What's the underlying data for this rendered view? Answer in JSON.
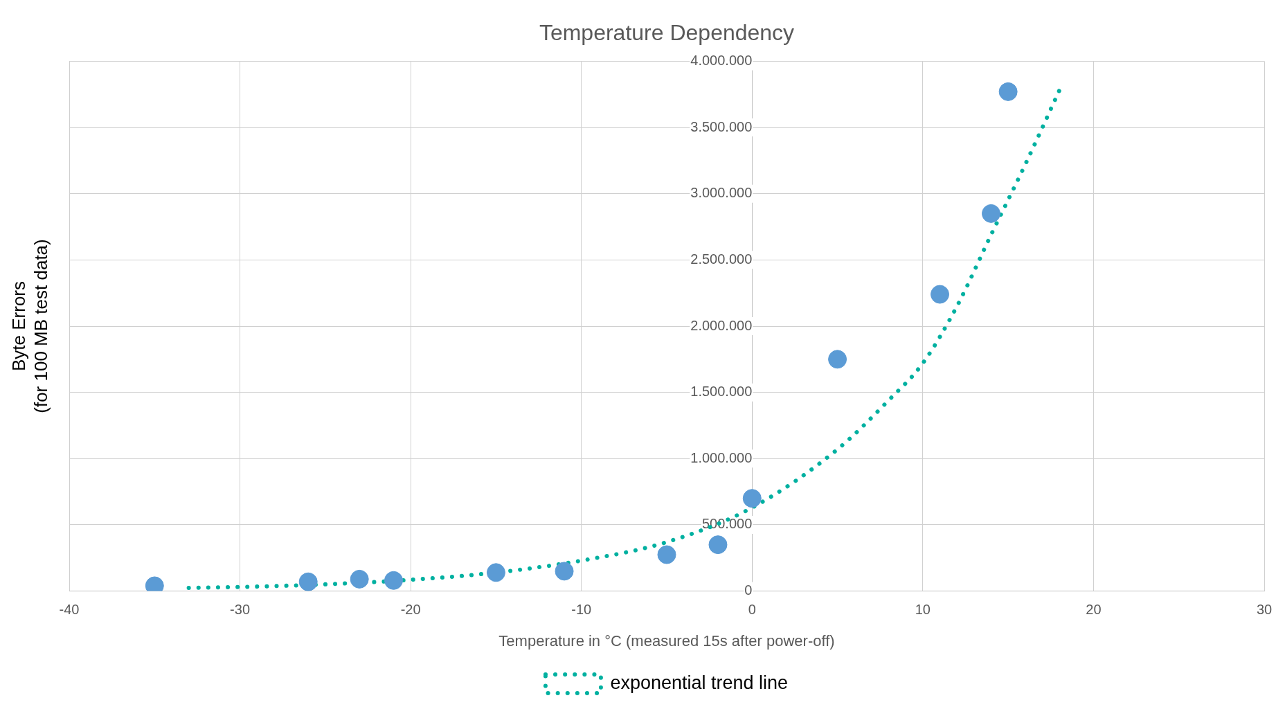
{
  "chart_data": {
    "type": "scatter",
    "title": "Temperature Dependency",
    "xlabel": "Temperature in °C (measured 15s after power-off)",
    "ylabel": "Byte Errors\n(for 100 MB test data)",
    "xlim": [
      -40,
      30
    ],
    "xticks": [
      -40,
      -30,
      -20,
      -10,
      0,
      10,
      20,
      30
    ],
    "ylim": [
      0,
      4000000
    ],
    "yticks": [
      0,
      {
        "value": 500000,
        "label": "500.000"
      },
      {
        "value": 1000000,
        "label": "1.000.000"
      },
      {
        "value": 1500000,
        "label": "1.500.000"
      },
      {
        "value": 2000000,
        "label": "2.000.000"
      },
      {
        "value": 2500000,
        "label": "2.500.000"
      },
      {
        "value": 3000000,
        "label": "3.000.000"
      },
      {
        "value": 3500000,
        "label": "3.500.000"
      },
      {
        "value": 4000000,
        "label": "4.000.000"
      }
    ],
    "grid": true,
    "legend": "bottom",
    "marker": "circle",
    "series": [
      {
        "color": "#5b9bd5",
        "x": [
          -35,
          -26,
          -23,
          -21,
          -15,
          -11,
          -5,
          -2,
          0,
          5,
          11,
          14,
          15
        ],
        "values": [
          40000,
          70000,
          90000,
          80000,
          140000,
          150000,
          275000,
          350000,
          700000,
          1750000,
          2240000,
          2850000,
          3770000
        ]
      },
      {
        "type": "line",
        "name": "exponential trend line",
        "color": "#00b0a0",
        "line_style": "dotted",
        "marker": "none",
        "x": [
          -33,
          -30,
          -25,
          -20,
          -15,
          -10,
          -5,
          0,
          5,
          8,
          10,
          12,
          14,
          16,
          18
        ],
        "values": [
          24000,
          31000,
          51000,
          85000,
          140000,
          230000,
          370000,
          630000,
          1070000,
          1440000,
          1720000,
          2150000,
          2690000,
          3220000,
          3780000
        ]
      }
    ]
  }
}
